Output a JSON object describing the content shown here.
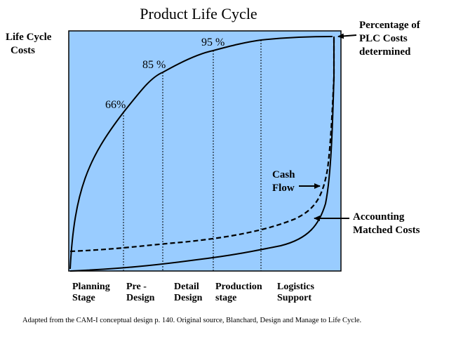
{
  "title": "Product Life Cycle",
  "y_axis_label": [
    "Life Cycle",
    "Costs"
  ],
  "annotations": {
    "plc_determined": [
      "Percentage of",
      "PLC Costs",
      "determined"
    ],
    "cash_flow": [
      "Cash",
      "Flow"
    ],
    "accounting": [
      "Accounting",
      "Matched Costs"
    ]
  },
  "percent_labels": [
    "66%",
    "85 %",
    "95 %"
  ],
  "stages": [
    {
      "line1": "Planning",
      "line2": "Stage"
    },
    {
      "line1": "Pre -",
      "line2": "Design"
    },
    {
      "line1": "Detail",
      "line2": "Design"
    },
    {
      "line1": "Production",
      "line2": "stage"
    },
    {
      "line1": "Logistics",
      "line2": "Support"
    }
  ],
  "caption": "Adapted from the CAM-I conceptual design p. 140.  Original source, Blanchard, Design and Manage to Life Cycle.",
  "colors": {
    "plot_background": "#99ccff",
    "line": "#000000"
  }
}
